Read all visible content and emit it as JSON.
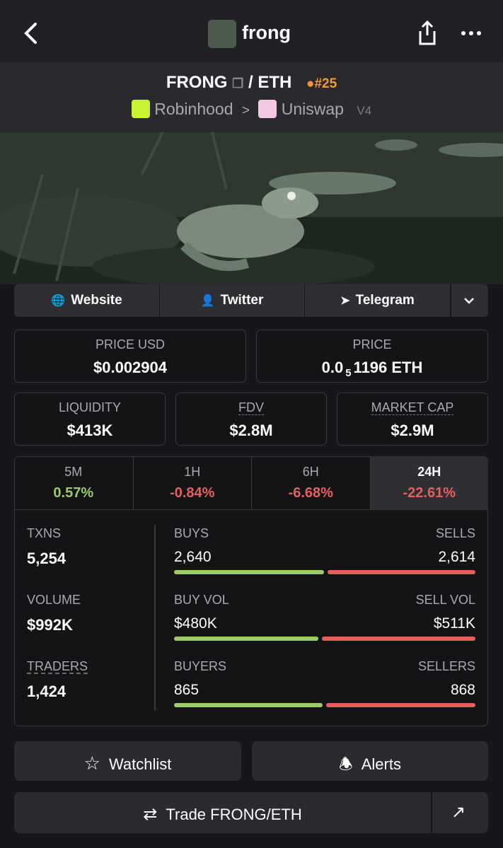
{
  "header": {
    "title": "frong"
  },
  "pair": {
    "base": "FRONG",
    "separator": "/",
    "quote": "ETH",
    "rank": "#25",
    "chain": "Robinhood",
    "dex": "Uniswap",
    "version": "V4"
  },
  "links": [
    "Website",
    "Twitter",
    "Telegram"
  ],
  "prices": [
    {
      "label": "PRICE USD",
      "value": "$0.002904"
    },
    {
      "label": "PRICE",
      "lead": "0.0",
      "zeros": "5",
      "rest": "1196 ETH"
    }
  ],
  "metrics": [
    {
      "label": "LIQUIDITY",
      "value": "$413K"
    },
    {
      "label": "FDV",
      "value": "$2.8M"
    },
    {
      "label": "MARKET CAP",
      "value": "$2.9M"
    }
  ],
  "periods": [
    {
      "label": "5M",
      "change": "0.57%"
    },
    {
      "label": "1H",
      "change": "-0.84%"
    },
    {
      "label": "6H",
      "change": "-6.68%"
    },
    {
      "label": "24H",
      "change": "-22.61%"
    }
  ],
  "stats": [
    {
      "label": "TXNS",
      "value": "5,254",
      "left_label": "BUYS",
      "left_value": "2,640",
      "right_label": "SELLS",
      "right_value": "2,614"
    },
    {
      "label": "VOLUME",
      "value": "$992K",
      "left_label": "BUY VOL",
      "left_value": "$480K",
      "right_label": "SELL VOL",
      "right_value": "$511K"
    },
    {
      "label": "TRADERS",
      "value": "1,424",
      "left_label": "BUYERS",
      "left_value": "865",
      "right_label": "SELLERS",
      "right_value": "868"
    }
  ],
  "actions": {
    "watchlist": "Watchlist",
    "alerts": "Alerts",
    "trade": "Trade FRONG/ETH"
  }
}
